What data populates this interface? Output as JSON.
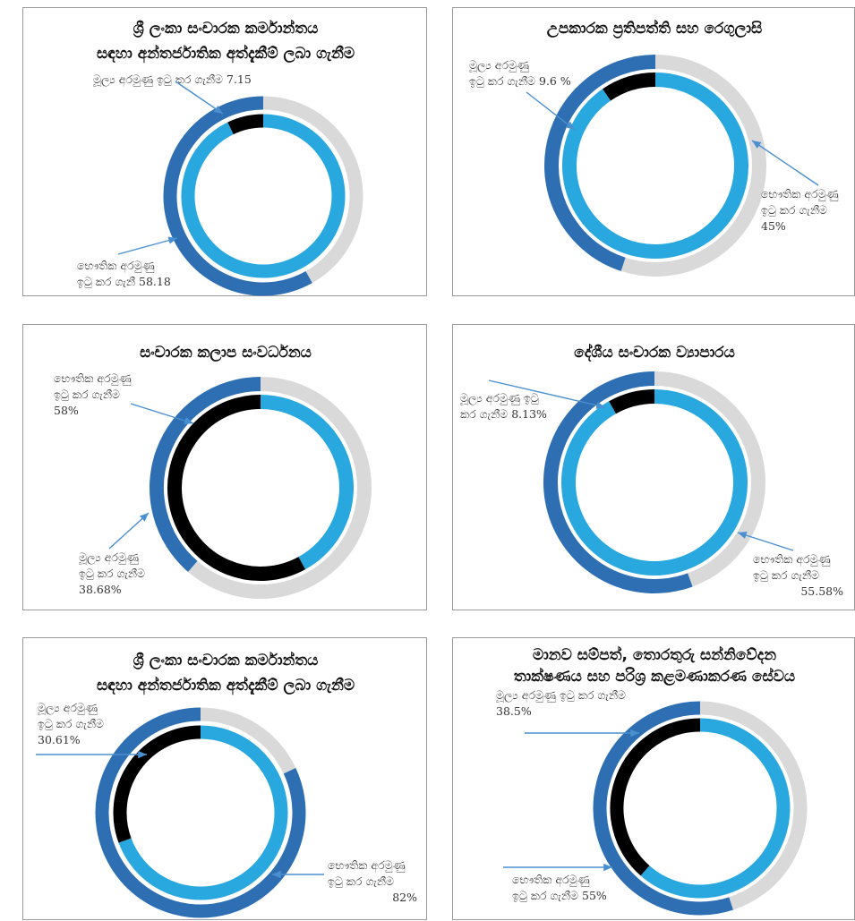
{
  "colors": {
    "outer_dark": "#2E6FB4",
    "outer_light": "#D9D9D9",
    "inner_light": "#29A8E0",
    "inner_dark": "#000000",
    "arrow": "#4A8FD0",
    "border": "#9A9A9A"
  },
  "chart_data": [
    {
      "type": "donut",
      "title_lines": [
        "ශ්‍රී ලංකා සංචාරක කර්මාන්තය",
        "සඳහා අන්තර්ජාතික අත්දැකීම් ලබා ගැනීම"
      ],
      "rings": [
        {
          "ring": "outer",
          "label_lines": [
            "භෞතික අරමුණු",
            "ඉටු කර ගැනී 58.18"
          ],
          "value": 58.18
        },
        {
          "ring": "inner",
          "label_lines": [
            "මූල්‍ය අරමුණු ඉටු කර ගැනීම 7.15"
          ],
          "value": 7.15
        }
      ]
    },
    {
      "type": "donut",
      "title_lines": [
        "උපකාරක ප්‍රතිපත්ති සහ රෙගුලාසි"
      ],
      "rings": [
        {
          "ring": "outer",
          "label_lines": [
            "භෞතික අරමුණු",
            "ඉටු කර ගැනීම",
            "45%"
          ],
          "value": 45
        },
        {
          "ring": "inner",
          "label_lines": [
            "මූල්‍ය අරමුණු",
            "ඉටු කර ගැනීම 9.6 %"
          ],
          "value": 9.6
        }
      ]
    },
    {
      "type": "donut",
      "title_lines": [
        "සංචාරක කලාප සංවර්ධනය"
      ],
      "rings": [
        {
          "ring": "outer",
          "label_lines": [
            "මූල්‍ය අරමුණු",
            "ඉටු කර ගැනීම",
            "38.68%"
          ],
          "value": 38.68
        },
        {
          "ring": "inner",
          "label_lines": [
            "භෞතික අරමුණු",
            "ඉටු කර ගැනීම",
            "58%"
          ],
          "value": 58
        }
      ]
    },
    {
      "type": "donut",
      "title_lines": [
        "දේශීය සංචාරක ව්‍යාපාරය"
      ],
      "rings": [
        {
          "ring": "outer",
          "label_lines": [
            "භෞතික අරමුණු",
            "ඉටු කර ගැනීම",
            "55.58%"
          ],
          "value": 55.58
        },
        {
          "ring": "inner",
          "label_lines": [
            "මූල්‍ය අරමුණු ඉටු",
            "කර ගැනීම 8.13%"
          ],
          "value": 8.13
        }
      ]
    },
    {
      "type": "donut",
      "title_lines": [
        "ශ්‍රී ලංකා සංචාරක කර්මාන්තය",
        "සඳහා අන්තර්ජාතික අත්දැකීම් ලබා ගැනීම"
      ],
      "rings": [
        {
          "ring": "outer",
          "label_lines": [
            "භෞතික අරමුණු",
            "ඉටු කර ගැනීම",
            "82%"
          ],
          "value": 82
        },
        {
          "ring": "inner",
          "label_lines": [
            "මූල්‍ය අරමුණු",
            "ඉටු කර ගැනීම",
            "30.61%"
          ],
          "value": 30.61
        }
      ]
    },
    {
      "type": "donut",
      "title_lines": [
        "මානව සම්පත්, තොරතුරු සන්නිවේදන",
        "තාක්ෂණය සහ පරිශ්‍ර කළමණාකරණ සේවය"
      ],
      "rings": [
        {
          "ring": "outer",
          "label_lines": [
            "භෞතික අරමුණු",
            "ඉටු කර ගැනීම 55%"
          ],
          "value": 55
        },
        {
          "ring": "inner",
          "label_lines": [
            "මූල්‍ය අරමුණු ඉටු කර ගැනීම",
            "38.5%"
          ],
          "value": 38.5
        }
      ]
    }
  ]
}
